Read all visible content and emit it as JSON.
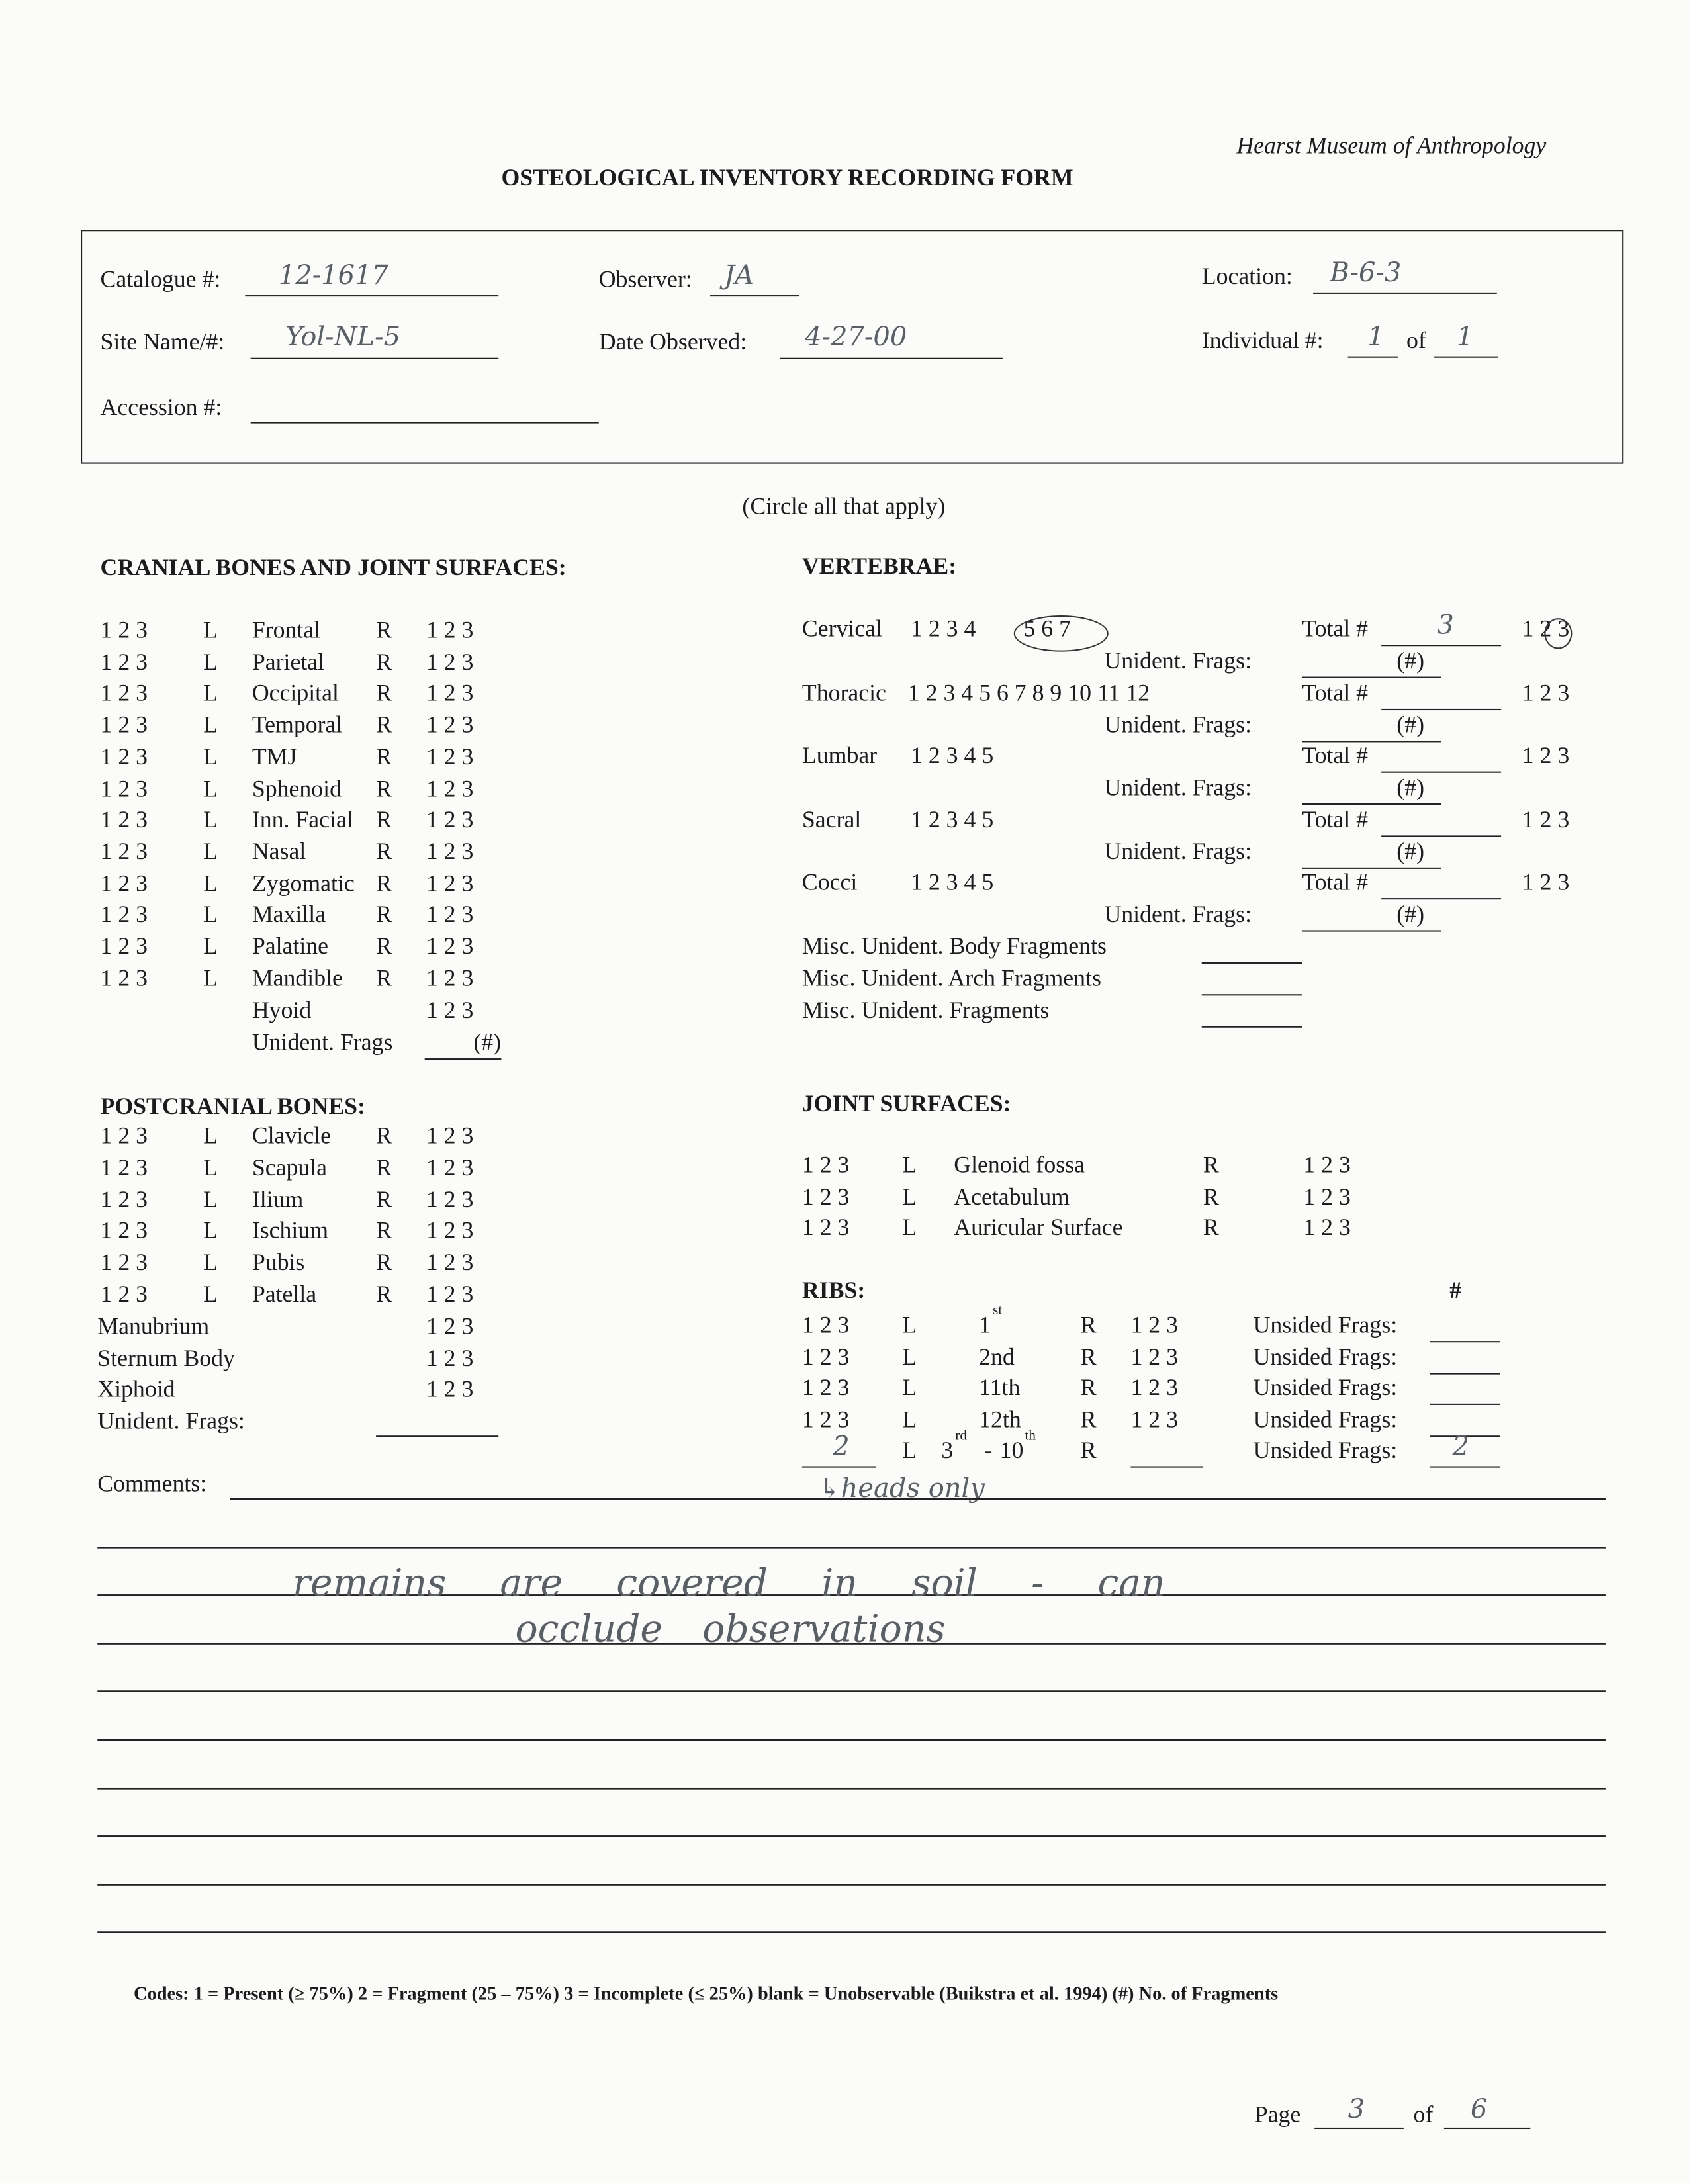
{
  "header": {
    "museum": "Hearst Museum of Anthropology",
    "title": "OSTEOLOGICAL INVENTORY RECORDING FORM"
  },
  "info": {
    "catalogue_label": "Catalogue #:",
    "catalogue_value": "12-1617",
    "observer_label": "Observer:",
    "observer_value": "JA",
    "location_label": "Location:",
    "location_value": "B-6-3",
    "site_label": "Site Name/#:",
    "site_value": "Yol-NL-5",
    "date_label": "Date Observed:",
    "date_value": "4-27-00",
    "individual_label": "Individual #:",
    "individual_value": "1",
    "of_label": "of",
    "individual_total": "1",
    "accession_label": "Accession #:",
    "accession_value": ""
  },
  "instruction": "(Circle all that apply)",
  "codes": "1 2 3",
  "L": "L",
  "R": "R",
  "frag_unit": "(#)",
  "cranial": {
    "heading": "CRANIAL BONES AND JOINT SURFACES:",
    "rows": [
      "Frontal",
      "Parietal",
      "Occipital",
      "Temporal",
      "TMJ",
      "Sphenoid",
      "Inn. Facial",
      "Nasal",
      "Zygomatic",
      "Maxilla",
      "Palatine",
      "Mandible"
    ],
    "hyoid": "Hyoid",
    "unident": "Unident. Frags"
  },
  "postcranial": {
    "heading": "POSTCRANIAL BONES:",
    "rows": [
      "Clavicle",
      "Scapula",
      "Ilium",
      "Ischium",
      "Pubis",
      "Patella"
    ],
    "unpaired": [
      "Manubrium",
      "Sternum Body",
      "Xiphoid"
    ],
    "unident": "Unident. Frags:"
  },
  "vertebrae": {
    "heading": "VERTEBRAE:",
    "total_label": "Total #",
    "unident_label": "Unident. Frags:",
    "rows": [
      {
        "label": "Cervical",
        "numbers": "1 2 3 4",
        "circled_numbers": "5 6 7",
        "total": "3",
        "score_circled": "2"
      },
      {
        "label": "Thoracic",
        "numbers": "1 2 3 4 5 6 7 8 9 10 11 12",
        "total": ""
      },
      {
        "label": "Lumbar",
        "numbers": "1 2 3 4 5",
        "total": ""
      },
      {
        "label": "Sacral",
        "numbers": "1 2 3 4 5",
        "total": ""
      },
      {
        "label": "Cocci",
        "numbers": "1 2 3 4 5",
        "total": ""
      }
    ],
    "misc": [
      "Misc. Unident. Body Fragments",
      "Misc. Unident. Arch Fragments",
      "Misc. Unident. Fragments"
    ]
  },
  "joints": {
    "heading": "JOINT SURFACES:",
    "rows": [
      "Glenoid fossa",
      "Acetabulum",
      "Auricular Surface"
    ]
  },
  "ribs": {
    "heading": "RIBS:",
    "hash": "#",
    "unsided_label": "Unsided Frags:",
    "rows": [
      {
        "name": "1",
        "sup": "st"
      },
      {
        "name": "2nd",
        "sup": ""
      },
      {
        "name": "11th",
        "sup": ""
      },
      {
        "name": "12th",
        "sup": ""
      }
    ],
    "mid": {
      "left_value": "2",
      "from": "3",
      "from_sup": "rd",
      "dash": "-",
      "to": "10",
      "to_sup": "th",
      "right_value": "",
      "unsided_value": "2",
      "note": "↳heads only"
    }
  },
  "comments": {
    "label": "Comments:",
    "line1": "remains are covered in soil - can",
    "line2": "occlude observations"
  },
  "footer": {
    "codes": "Codes:  1 = Present (≥ 75%)  2 = Fragment (25 – 75%)  3 = Incomplete (≤ 25%)  blank = Unobservable  (Buikstra et al. 1994)  (#) No. of Fragments",
    "page_label": "Page",
    "page_value": "3",
    "of_label": "of",
    "page_total": "6"
  }
}
